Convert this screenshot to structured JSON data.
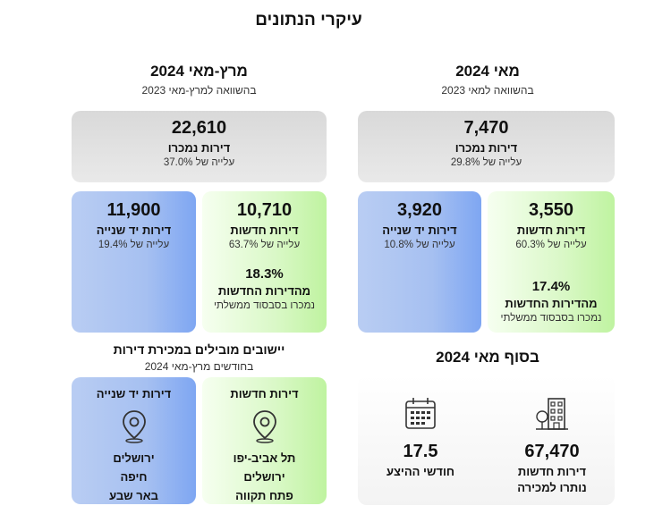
{
  "title": "עיקרי הנתונים",
  "may": {
    "heading": "מאי 2024",
    "subheading": "בהשוואה למאי 2023",
    "total": {
      "value": "7,470",
      "label": "דירות נמכרו",
      "change": "עלייה של 29.8%"
    },
    "new": {
      "value": "3,550",
      "label": "דירות חדשות",
      "change": "עלייה של 60.3%",
      "share_value": "17.4%",
      "share_label": "מהדירות החדשות",
      "share_note": "נמכרו בסבסוד ממשלתי"
    },
    "second": {
      "value": "3,920",
      "label": "דירות יד שנייה",
      "change": "עלייה של 10.8%"
    }
  },
  "marmay": {
    "heading": "מרץ-מאי 2024",
    "subheading": "בהשוואה למרץ-מאי 2023",
    "total": {
      "value": "22,610",
      "label": "דירות נמכרו",
      "change": "עלייה של 37.0%"
    },
    "new": {
      "value": "10,710",
      "label": "דירות חדשות",
      "change": "עלייה של 63.7%",
      "share_value": "18.3%",
      "share_label": "מהדירות החדשות",
      "share_note": "נמכרו בסבסוד ממשלתי"
    },
    "second": {
      "value": "11,900",
      "label": "דירות יד שנייה",
      "change": "עלייה של 19.4%"
    }
  },
  "endmay": {
    "heading": "בסוף מאי 2024",
    "inventory": {
      "value": "67,470",
      "label1": "דירות חדשות",
      "label2": "נותרו למכירה"
    },
    "months": {
      "value": "17.5",
      "label": "חודשי ההיצע"
    }
  },
  "settlements": {
    "heading": "יישובים מובילים במכירת דירות",
    "subheading": "בחודשים מרץ-מאי 2024",
    "new": {
      "title": "דירות חדשות",
      "cities": [
        "תל אביב-יפו",
        "ירושלים",
        "פתח תקווה"
      ]
    },
    "second": {
      "title": "דירות יד שנייה",
      "cities": [
        "ירושלים",
        "חיפה",
        "באר שבע"
      ]
    }
  },
  "colors": {
    "new_green": "#c8f5ad",
    "second_blue": "#a6c0f1",
    "gray": "#dedede"
  },
  "icons": [
    "location-pin-icon",
    "building-icon",
    "calendar-icon"
  ]
}
